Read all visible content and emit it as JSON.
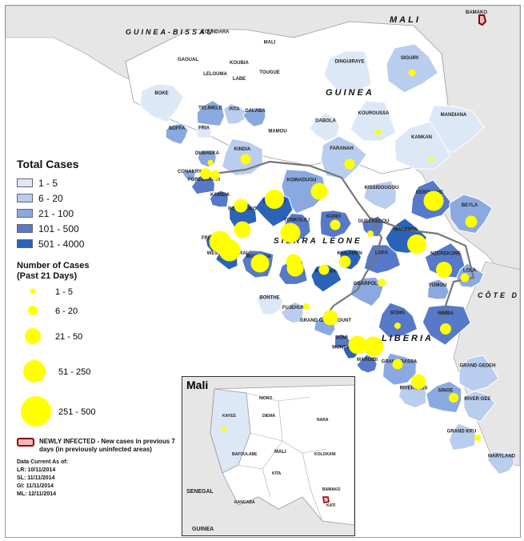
{
  "colors": {
    "tier1": "#dde8f7",
    "tier2": "#b9cdee",
    "tier3": "#8aa9e0",
    "tier4": "#5679c9",
    "tier5": "#2a63b7",
    "bubble": "#ffff00",
    "newly_infected_fill": "#f2b8b8",
    "newly_infected_border": "#8b0000"
  },
  "countries": {
    "guinea_bissau": "GUINEA-BISSAU",
    "mali": "MALI",
    "guinea": "GUINEA",
    "sierra_leone": "SIERRA LEONE",
    "liberia": "LIBERIA",
    "cote_divoire": "CÔTE D'IVOI"
  },
  "regions": [
    {
      "name": "KOUNDARA",
      "tier": 0
    },
    {
      "name": "MALI",
      "tier": 0
    },
    {
      "name": "GAOUAL",
      "tier": 0
    },
    {
      "name": "KOUBIA",
      "tier": 0
    },
    {
      "name": "LELOUMA",
      "tier": 0
    },
    {
      "name": "LABE",
      "tier": 0
    },
    {
      "name": "TOUGUE",
      "tier": 0
    },
    {
      "name": "DINGUIRAYE",
      "tier": 1
    },
    {
      "name": "SIGUIRI",
      "tier": 2
    },
    {
      "name": "BOKE",
      "tier": 1
    },
    {
      "name": "TELIMELE",
      "tier": 3
    },
    {
      "name": "PITA",
      "tier": 2
    },
    {
      "name": "DALABA",
      "tier": 3
    },
    {
      "name": "KOUROUSSA",
      "tier": 1
    },
    {
      "name": "MANDIANA",
      "tier": 1
    },
    {
      "name": "BOFFA",
      "tier": 3
    },
    {
      "name": "FRIA",
      "tier": 1
    },
    {
      "name": "MAMOU",
      "tier": 0
    },
    {
      "name": "DABOLA",
      "tier": 1
    },
    {
      "name": "KINDIA",
      "tier": 2
    },
    {
      "name": "DUBREKA",
      "tier": 3
    },
    {
      "name": "KANKAN",
      "tier": 1
    },
    {
      "name": "FARANAH",
      "tier": 2
    },
    {
      "name": "CONAKRY",
      "tier": 3
    },
    {
      "name": "FORECARIAH",
      "tier": 4
    },
    {
      "name": "KOINADUGU",
      "tier": 3
    },
    {
      "name": "KISSIDOUGOU",
      "tier": 2
    },
    {
      "name": "KEROUANE",
      "tier": 4
    },
    {
      "name": "BEYLA",
      "tier": 3
    },
    {
      "name": "KAMBIA",
      "tier": 4
    },
    {
      "name": "PORT LOKO",
      "tier": 5
    },
    {
      "name": "BOMBALI",
      "tier": 5
    },
    {
      "name": "TONKOLILI",
      "tier": 4
    },
    {
      "name": "KONO",
      "tier": 4
    },
    {
      "name": "GUECKEDOU",
      "tier": 4
    },
    {
      "name": "MACENTA",
      "tier": 5
    },
    {
      "name": "FREETOWN",
      "tier": 5
    },
    {
      "name": "WESTERN RURAL",
      "tier": 5
    },
    {
      "name": "LOFA",
      "tier": 4
    },
    {
      "name": "KAILAHUN",
      "tier": 5
    },
    {
      "name": "NZEREKORE",
      "tier": 4
    },
    {
      "name": "LOLA",
      "tier": 3
    },
    {
      "name": "MOYAMBA",
      "tier": 4
    },
    {
      "name": "BO",
      "tier": 4
    },
    {
      "name": "KENEMA",
      "tier": 5
    },
    {
      "name": "GBARPOLU",
      "tier": 3
    },
    {
      "name": "YOMOU",
      "tier": 3
    },
    {
      "name": "BONTHE",
      "tier": 1
    },
    {
      "name": "FUJEHUN",
      "tier": 2
    },
    {
      "name": "BONG",
      "tier": 4
    },
    {
      "name": "NIMBA",
      "tier": 4
    },
    {
      "name": "GRAND CAPE MOUNT",
      "tier": 3
    },
    {
      "name": "BOMI",
      "tier": 4
    },
    {
      "name": "MONTSERRADO",
      "tier": 5
    },
    {
      "name": "MARGIBI",
      "tier": 4
    },
    {
      "name": "GRAND BASSA",
      "tier": 3
    },
    {
      "name": "RIVERCESS",
      "tier": 2
    },
    {
      "name": "GRAND GEDEH",
      "tier": 2
    },
    {
      "name": "RIVER GEE",
      "tier": 2
    },
    {
      "name": "SINOE",
      "tier": 3
    },
    {
      "name": "GRAND KRU",
      "tier": 2
    },
    {
      "name": "MARYLAND",
      "tier": 2
    }
  ],
  "place_labels": {
    "bamako": "BAMAKO",
    "mali_inset_label": "MALI"
  },
  "legend": {
    "total_title": "Total Cases",
    "total_classes": [
      "1 - 5",
      "6 - 20",
      "21 - 100",
      "101 - 500",
      "501 - 4000"
    ],
    "number_title": "Number of Cases",
    "number_sub": "(Past 21 Days)",
    "number_classes": [
      "1 - 5",
      "6 - 20",
      "21 - 50",
      "51 - 250",
      "251 - 500"
    ],
    "newly_infected": "NEWLY INFECTED - New cases in previous 7 days (in previously uninfected areas)",
    "data_current": "Data Current As of:",
    "dates": [
      "LR:  10/11/2014",
      "SL:  11/11/2014",
      "GI:  11/11/2014",
      "ML:  12/11/2014"
    ]
  },
  "inset": {
    "title": "Mali",
    "labels": {
      "kayes": "KAYES",
      "nioro": "NIORO",
      "diema": "DIEMA",
      "nara": "NARA",
      "kita": "KITA",
      "bafoulabe": "BAFOULABE",
      "mali": "MALI",
      "kolokani": "KOLOKANI",
      "kangaba": "KANGABA",
      "kati": "KATI",
      "bamako": "BAMAKO",
      "senegal": "SENEGAL",
      "guinea": "GUINEA"
    }
  }
}
